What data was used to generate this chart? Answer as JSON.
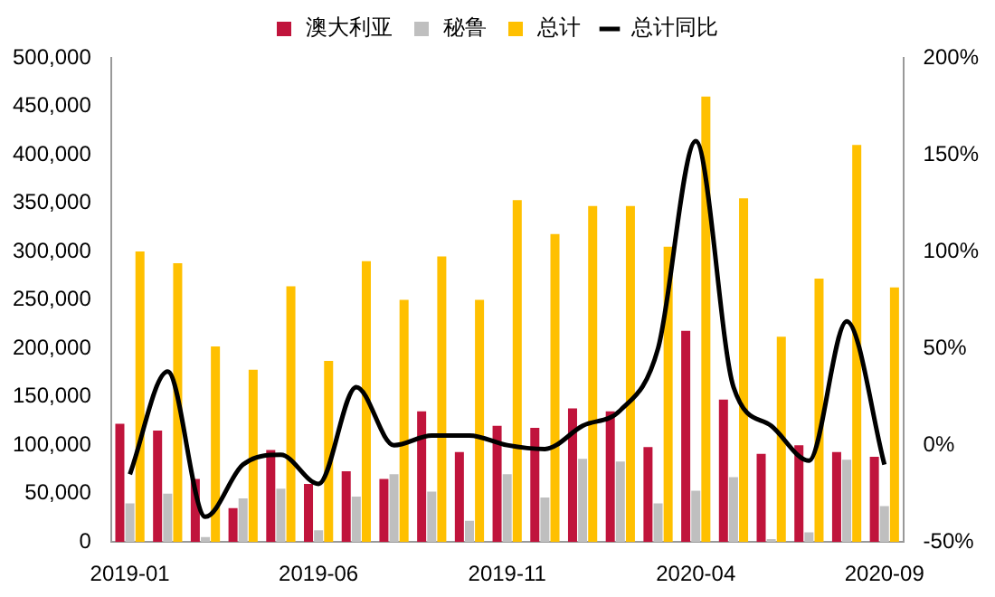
{
  "chart_data": {
    "type": "bar",
    "categories": [
      "2019-01",
      null,
      null,
      null,
      null,
      "2019-06",
      null,
      null,
      null,
      null,
      "2019-11",
      null,
      null,
      null,
      null,
      "2020-04",
      null,
      null,
      null,
      null,
      "2020-09"
    ],
    "series": [
      {
        "name": "澳大利亚",
        "color": "#c0143c",
        "values": [
          122000,
          115000,
          65000,
          35000,
          95000,
          60000,
          73000,
          65000,
          135000,
          93000,
          120000,
          118000,
          138000,
          135000,
          98000,
          218000,
          147000,
          91000,
          100000,
          93000,
          88000
        ]
      },
      {
        "name": "秘鲁",
        "color": "#bfbfbf",
        "values": [
          40000,
          50000,
          5000,
          45000,
          55000,
          12000,
          47000,
          70000,
          52000,
          22000,
          70000,
          46000,
          86000,
          83000,
          40000,
          53000,
          67000,
          3000,
          10000,
          85000,
          37000
        ]
      },
      {
        "name": "总计",
        "color": "#ffc000",
        "values": [
          300000,
          288000,
          202000,
          178000,
          264000,
          187000,
          290000,
          250000,
          295000,
          250000,
          353000,
          318000,
          347000,
          347000,
          305000,
          460000,
          355000,
          212000,
          272000,
          410000,
          263000
        ]
      },
      {
        "name": "总计同比",
        "type": "line",
        "axis": "y2",
        "color": "#000000",
        "values": [
          -15,
          38,
          -37,
          -10,
          -5,
          -20,
          30,
          0,
          5,
          5,
          0,
          -2,
          10,
          18,
          50,
          157,
          30,
          10,
          -8,
          64,
          -10
        ]
      }
    ],
    "ylim": [
      0,
      500000
    ],
    "yticks": [
      0,
      {
        "value": 50000,
        "label": "50,000"
      },
      {
        "value": 100000,
        "label": "100,000"
      },
      {
        "value": 150000,
        "label": "150,000"
      },
      {
        "value": 200000,
        "label": "200,000"
      },
      {
        "value": 250000,
        "label": "250,000"
      },
      {
        "value": 300000,
        "label": "300,000"
      },
      {
        "value": 350000,
        "label": "350,000"
      },
      {
        "value": 400000,
        "label": "400,000"
      },
      {
        "value": 450000,
        "label": "450,000"
      },
      {
        "value": 500000,
        "label": "500,000"
      }
    ],
    "y2lim": [
      -50,
      200
    ],
    "y2ticks": [
      {
        "value": -50,
        "label": "-50%"
      },
      {
        "value": 0,
        "label": "0%"
      },
      {
        "value": 50,
        "label": "50%"
      },
      {
        "value": 100,
        "label": "100%"
      },
      {
        "value": 150,
        "label": "150%"
      },
      {
        "value": 200,
        "label": "200%"
      }
    ],
    "legend": "top",
    "grid": false,
    "marker": "none"
  }
}
